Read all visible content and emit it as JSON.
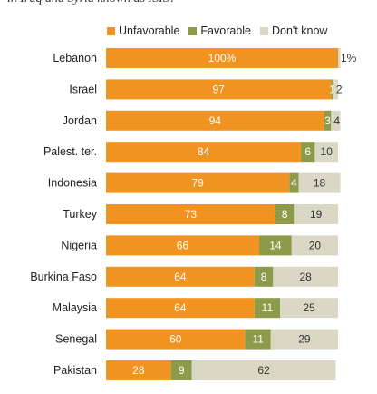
{
  "chart_data": {
    "type": "bar",
    "orientation": "horizontal",
    "stacked": true,
    "subtitle": "in Iraq and Syria known as ISIS?",
    "categories": [
      "Lebanon",
      "Israel",
      "Jordan",
      "Palest. ter.",
      "Indonesia",
      "Turkey",
      "Nigeria",
      "Burkina Faso",
      "Malaysia",
      "Senegal",
      "Pakistan"
    ],
    "series": [
      {
        "name": "Unfavorable",
        "color": "#f19320",
        "values": [
          100,
          97,
          94,
          84,
          79,
          73,
          66,
          64,
          64,
          60,
          28
        ],
        "labels": [
          "100%",
          "97",
          "94",
          "84",
          "79",
          "73",
          "66",
          "64",
          "64",
          "60",
          "28"
        ]
      },
      {
        "name": "Favorable",
        "color": "#8c9a49",
        "values": [
          0,
          1,
          3,
          6,
          4,
          8,
          14,
          8,
          11,
          11,
          9
        ],
        "labels": [
          "",
          "1",
          "3",
          "6",
          "4",
          "8",
          "14",
          "8",
          "11",
          "11",
          "9"
        ]
      },
      {
        "name": "Don't know",
        "color": "#dad8c5",
        "values": [
          1,
          2,
          4,
          10,
          18,
          19,
          20,
          28,
          25,
          29,
          62
        ],
        "labels": [
          "1%",
          "2",
          "4",
          "10",
          "18",
          "19",
          "20",
          "28",
          "25",
          "29",
          "62"
        ]
      }
    ],
    "xlim": [
      0,
      100
    ],
    "legend": "top",
    "grid": false
  }
}
